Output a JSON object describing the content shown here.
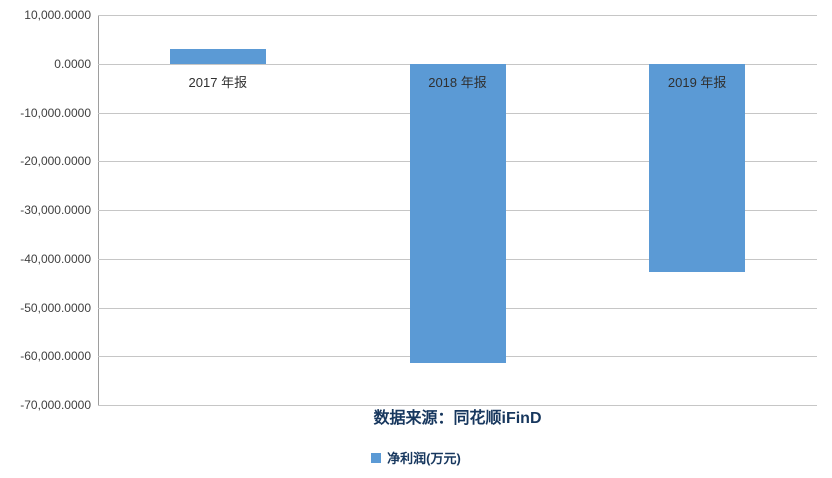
{
  "chart": {
    "source_label": "数据来源：同花顺iFinD",
    "legend_label": "净利润(万元)"
  },
  "chart_data": {
    "type": "bar",
    "title": "",
    "xlabel": "",
    "ylabel": "",
    "categories": [
      "2017 年报",
      "2018 年报",
      "2019 年报"
    ],
    "series": [
      {
        "name": "净利润(万元)",
        "values": [
          3000,
          -61300,
          -42800
        ]
      }
    ],
    "ylim": [
      -70000,
      10000
    ],
    "ytick_step": 10000,
    "ytick_labels": [
      "10,000.0000",
      "0.0000",
      "-10,000.0000",
      "-20,000.0000",
      "-30,000.0000",
      "-40,000.0000",
      "-50,000.0000",
      "-60,000.0000",
      "-70,000.0000"
    ],
    "grid": true,
    "legend_position": "bottom",
    "annotations": [
      "数据来源：同花顺iFinD"
    ]
  },
  "colors": {
    "bar": "#5B9AD5",
    "gridline": "#C6C6C6",
    "axis_line": "#9E9E9E",
    "tick_text": "#404040",
    "category_text": "#303030",
    "caption_text": "#17375E",
    "background": "#FFFFFF"
  }
}
